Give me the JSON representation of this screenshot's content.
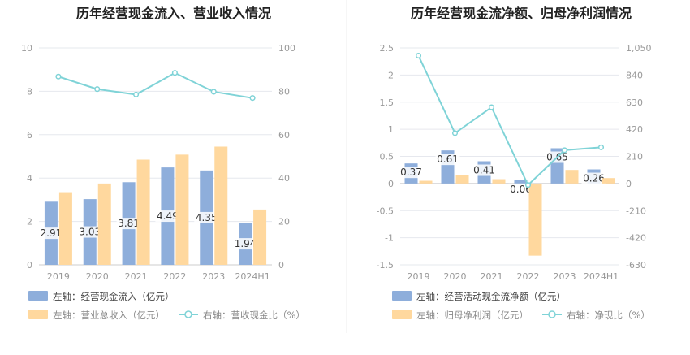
{
  "colors": {
    "bar_blue": "#8EAEDB",
    "bar_orange": "#FFD89E",
    "line_teal": "#7FD3D7",
    "grid": "#e6e8ee",
    "title": "#222222"
  },
  "chart_data": [
    {
      "type": "bar",
      "title": "历年经营现金流入、营业收入情况",
      "categories": [
        "2019",
        "2020",
        "2021",
        "2022",
        "2023",
        "2024H1"
      ],
      "ylim": [
        0,
        10
      ],
      "y_ticks": [
        "0",
        "2",
        "4",
        "6",
        "8",
        "10"
      ],
      "y2lim": [
        0,
        100
      ],
      "y2_ticks": [
        "0",
        "20",
        "40",
        "60",
        "80",
        "100"
      ],
      "grid": true,
      "legend_position": "bottom-left",
      "series": [
        {
          "name": "左轴：经营现金流入（亿元）",
          "axis": "left",
          "kind": "bar",
          "values": [
            2.91,
            3.03,
            3.81,
            4.49,
            4.35,
            1.94
          ],
          "labels": [
            "2.91",
            "3.03",
            "3.81",
            "4.49",
            "4.35",
            "1.94"
          ]
        },
        {
          "name": "左轴：营业总收入（亿元）",
          "axis": "left",
          "kind": "bar",
          "values": [
            3.35,
            3.75,
            4.85,
            5.08,
            5.45,
            2.55
          ]
        },
        {
          "name": "右轴：营收现金比（%）",
          "axis": "right",
          "kind": "line",
          "values": [
            86.8,
            81.0,
            78.5,
            88.5,
            79.8,
            76.9
          ]
        }
      ]
    },
    {
      "type": "bar",
      "title": "历年经营现金流净额、归母净利润情况",
      "categories": [
        "2019",
        "2020",
        "2021",
        "2022",
        "2023",
        "2024H1"
      ],
      "ylim": [
        -1.5,
        2.5
      ],
      "y_ticks": [
        "-1.5",
        "-1",
        "-0.5",
        "0",
        "0.5",
        "1",
        "1.5",
        "2",
        "2.5"
      ],
      "y2lim": [
        -630,
        1050
      ],
      "y2_ticks": [
        "-630",
        "-420",
        "-210",
        "0",
        "210",
        "420",
        "630",
        "840",
        "1,050"
      ],
      "grid": true,
      "legend_position": "bottom-left",
      "series": [
        {
          "name": "左轴：经营活动现金流净额（亿元）",
          "axis": "left",
          "kind": "bar",
          "values": [
            0.37,
            0.61,
            0.41,
            0.06,
            0.65,
            0.26
          ],
          "labels": [
            "0.37",
            "0.61",
            "0.41",
            "0.06",
            "0.65",
            "0.26"
          ]
        },
        {
          "name": "左轴：归母净利润（亿元）",
          "axis": "left",
          "kind": "bar",
          "values": [
            0.05,
            0.16,
            0.08,
            -1.33,
            0.25,
            0.1
          ]
        },
        {
          "name": "右轴：净现比（%）",
          "axis": "right",
          "kind": "line",
          "values": [
            990,
            390,
            590,
            -12,
            258,
            280
          ]
        }
      ]
    }
  ]
}
